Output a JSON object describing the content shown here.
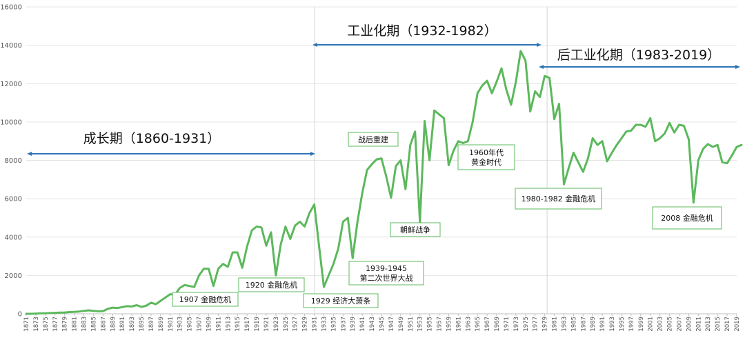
{
  "chart_data": {
    "type": "line",
    "x_start": 1871,
    "x_end": 2019,
    "ylim": [
      0,
      16000
    ],
    "y_ticks": [
      0,
      2000,
      4000,
      6000,
      8000,
      10000,
      12000,
      14000,
      16000
    ],
    "x_tick_labels": [
      "1871",
      "1873",
      "1875",
      "1877",
      "1879",
      "1881",
      "1883",
      "1885",
      "1887",
      "1889",
      "1891",
      "1893",
      "1895",
      "1897",
      "1899",
      "1901",
      "1903",
      "1905",
      "1907",
      "1909",
      "1911",
      "1913",
      "1915",
      "1917",
      "1919",
      "1921",
      "1923",
      "1925",
      "1927",
      "1929",
      "1931",
      "1933",
      "1935",
      "1937",
      "1939",
      "1941",
      "1943",
      "1945",
      "1947",
      "1949",
      "1951",
      "1953",
      "1955",
      "1957",
      "1959",
      "1961",
      "1963",
      "1965",
      "1967",
      "1969",
      "1971",
      "1973",
      "1975",
      "1977",
      "1979",
      "1981",
      "1983",
      "1985",
      "1987",
      "1989",
      "1991",
      "1993",
      "1995",
      "1997",
      "1999",
      "2001",
      "2003",
      "2005",
      "2007",
      "2009",
      "2011",
      "2013",
      "2015",
      "2017",
      "2019"
    ],
    "grid": "horizontal",
    "line_color": "#5cb85c",
    "arrow_color": "#2e75b6",
    "values": [
      0,
      0,
      10,
      20,
      30,
      40,
      50,
      60,
      70,
      90,
      100,
      120,
      150,
      180,
      150,
      130,
      140,
      260,
      320,
      300,
      350,
      400,
      380,
      450,
      360,
      420,
      580,
      500,
      680,
      850,
      1020,
      1000,
      1350,
      1500,
      1450,
      1400,
      2000,
      2350,
      2350,
      1450,
      2350,
      2600,
      2450,
      3200,
      3200,
      2400,
      3500,
      4350,
      4550,
      4500,
      3550,
      4250,
      2000,
      3600,
      4550,
      3900,
      4600,
      4800,
      4550,
      5250,
      5700,
      3550,
      1400,
      2000,
      2600,
      3400,
      4800,
      5000,
      2900,
      4800,
      6300,
      7500,
      7800,
      8050,
      8100,
      7150,
      6050,
      7700,
      8000,
      6500,
      8800,
      9500,
      4800,
      10050,
      8000,
      10600,
      10400,
      10200,
      7750,
      8500,
      9000,
      8900,
      9000,
      10000,
      11500,
      11900,
      12150,
      11500,
      12100,
      12800,
      11700,
      10900,
      12100,
      13700,
      13200,
      10550,
      11600,
      11300,
      12400,
      12300,
      10150,
      10950,
      6750,
      7600,
      8400,
      7900,
      7400,
      8100,
      9150,
      8800,
      9000,
      7950,
      8400,
      8800,
      9150,
      9500,
      9550,
      9850,
      9850,
      9750,
      10200,
      9000,
      9150,
      9400,
      9950,
      9450,
      9850,
      9800,
      9100,
      5800,
      8000,
      8600,
      8850,
      8700,
      8800,
      7900,
      7850,
      8250,
      8700,
      8800
    ]
  },
  "periods": [
    {
      "label": "成长期（1860-1931）"
    },
    {
      "label": "工业化期（1932-1982）"
    },
    {
      "label": "后工业化期（1983-2019）"
    }
  ],
  "annotations": [
    {
      "lines": [
        "1907 金融危机"
      ]
    },
    {
      "lines": [
        "1920 金融危机"
      ]
    },
    {
      "lines": [
        "1929 经济大萧条"
      ]
    },
    {
      "lines": [
        "1939-1945",
        "第二次世界大战"
      ]
    },
    {
      "lines": [
        "战后重建"
      ]
    },
    {
      "lines": [
        "朝鲜战争"
      ]
    },
    {
      "lines": [
        "1960年代",
        "黄金时代"
      ]
    },
    {
      "lines": [
        "1980-1982 金融危机"
      ]
    },
    {
      "lines": [
        "2008 金融危机"
      ]
    }
  ]
}
